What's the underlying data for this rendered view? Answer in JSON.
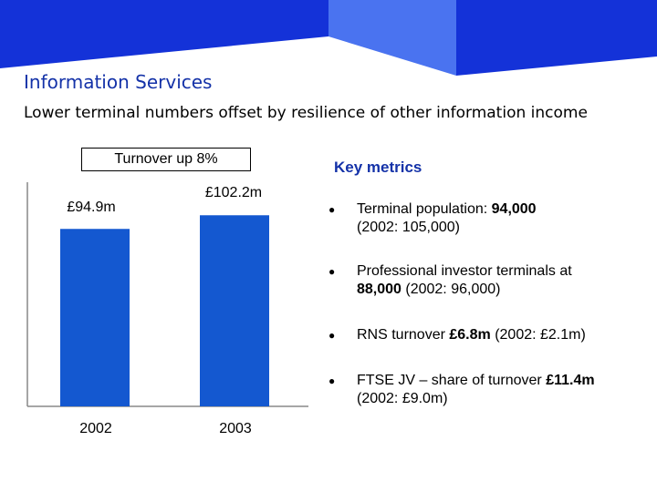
{
  "title": "Information Services",
  "subtitle": "Lower terminal numbers offset by resilience of other information income",
  "turnover_note": "Turnover up 8%",
  "colors": {
    "banner_dark": "#1432d8",
    "banner_light": "#4a73f0",
    "bar": "#1458d0",
    "accent_text": "#1432a8"
  },
  "chart_data": {
    "type": "bar",
    "categories": [
      "2002",
      "2003"
    ],
    "values": [
      94.9,
      102.2
    ],
    "data_labels": [
      "£94.9m",
      "£102.2m"
    ],
    "ylim": [
      0,
      115
    ],
    "title": "",
    "xlabel": "",
    "ylabel": ""
  },
  "key_metrics": {
    "title": "Key metrics",
    "bullet_icon": "bullet-dot-icon",
    "items": [
      {
        "pre": "Terminal population: ",
        "bold": "94,000",
        "post": "",
        "line2": "(2002: 105,000)"
      },
      {
        "pre": "Professional investor terminals at ",
        "bold": "",
        "post": "",
        "line2_bold": "88,000",
        "line2": " (2002: 96,000)"
      },
      {
        "pre": "RNS turnover ",
        "bold": "£6.8m",
        "post": " (2002: £2.1m)",
        "line2": ""
      },
      {
        "pre": "FTSE JV – share of turnover ",
        "bold": "£11.4m",
        "post": "",
        "line2": "(2002: £9.0m)"
      }
    ]
  }
}
